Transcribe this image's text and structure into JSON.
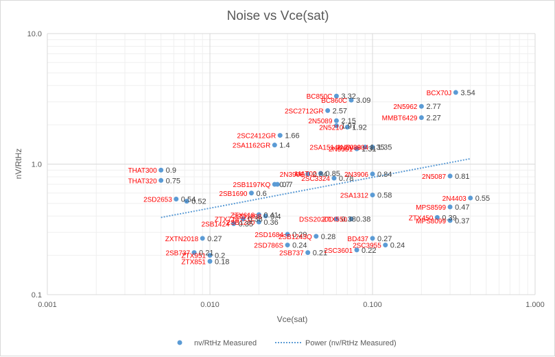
{
  "chart_data": {
    "type": "scatter",
    "title": "Noise vs Vce(sat)",
    "xlabel": "Vce(sat)",
    "ylabel": "nV/RtHz",
    "x_scale": "log",
    "y_scale": "log",
    "xlim": [
      0.001,
      1.0
    ],
    "ylim": [
      0.1,
      10.0
    ],
    "x_ticks": [
      "0.001",
      "0.010",
      "0.100",
      "1.000"
    ],
    "y_ticks": [
      "0.1",
      "1.0",
      "10.0"
    ],
    "grid": true,
    "legend_position": "bottom",
    "colors": {
      "points": "#5b9bd5",
      "trend": "#5b9bd5",
      "name_labels": "#ff0000",
      "value_labels": "#404040"
    },
    "series": [
      {
        "name": "nv/RtHz Measured",
        "marker": "circle",
        "points": [
          {
            "x": 0.325,
            "y": 3.54,
            "label": "3.54",
            "name": "BCX70J"
          },
          {
            "x": 0.06,
            "y": 3.32,
            "label": "3.32",
            "name": "BC850C"
          },
          {
            "x": 0.074,
            "y": 3.09,
            "label": "3.09",
            "name": "BC860C"
          },
          {
            "x": 0.053,
            "y": 2.57,
            "label": "2.57",
            "name": "2SC2712GR"
          },
          {
            "x": 0.2,
            "y": 2.77,
            "label": "2.77",
            "name": "2N5962"
          },
          {
            "x": 0.2,
            "y": 2.27,
            "label": "2.27",
            "name": "MMBT6429"
          },
          {
            "x": 0.06,
            "y": 2.15,
            "label": "2.15",
            "name": "2N5089"
          },
          {
            "x": 0.06,
            "y": 1.97,
            "label": "1.97",
            "name": ""
          },
          {
            "x": 0.07,
            "y": 1.92,
            "label": "1.92",
            "name": "2N5210"
          },
          {
            "x": 0.027,
            "y": 1.66,
            "label": "1.66",
            "name": "2SC2412GR"
          },
          {
            "x": 0.025,
            "y": 1.4,
            "label": "1.4",
            "name": "2SA1162GR"
          },
          {
            "x": 0.09,
            "y": 1.35,
            "label": "1.35",
            "name": "2N5088"
          },
          {
            "x": 0.08,
            "y": 1.31,
            "label": "1.31",
            "name": "2N5551"
          },
          {
            "x": 0.1,
            "y": 1.35,
            "label": "1.35",
            "name": "2SA1514K,2N3904"
          },
          {
            "x": 0.005,
            "y": 0.9,
            "label": "0.9",
            "name": "THAT300"
          },
          {
            "x": 0.005,
            "y": 0.75,
            "label": "0.75",
            "name": "THAT320"
          },
          {
            "x": 0.04,
            "y": 0.84,
            "label": "0.84",
            "name": "2N3906"
          },
          {
            "x": 0.048,
            "y": 0.85,
            "label": "0.85",
            "name": "MAT02"
          },
          {
            "x": 0.058,
            "y": 0.78,
            "label": "0.78",
            "name": "2SC3324"
          },
          {
            "x": 0.1,
            "y": 0.84,
            "label": "0.84",
            "name": "2N3906"
          },
          {
            "x": 0.3,
            "y": 0.81,
            "label": "0.81",
            "name": "2N5087"
          },
          {
            "x": 0.025,
            "y": 0.7,
            "label": "0.7",
            "name": "2SB1197KQ"
          },
          {
            "x": 0.026,
            "y": 0.7,
            "label": "0.7",
            "name": ""
          },
          {
            "x": 0.018,
            "y": 0.6,
            "label": "0.6",
            "name": "2SB1690"
          },
          {
            "x": 0.1,
            "y": 0.58,
            "label": "0.58",
            "name": "2SA1312"
          },
          {
            "x": 0.0062,
            "y": 0.54,
            "label": "0.54",
            "name": "2SD2653"
          },
          {
            "x": 0.0072,
            "y": 0.52,
            "label": "0.52",
            "name": ""
          },
          {
            "x": 0.4,
            "y": 0.55,
            "label": "0.55",
            "name": "2N4403"
          },
          {
            "x": 0.3,
            "y": 0.47,
            "label": "0.47",
            "name": "MPS8599"
          },
          {
            "x": 0.02,
            "y": 0.41,
            "label": "0.41",
            "name": "ZTX618"
          },
          {
            "x": 0.022,
            "y": 0.4,
            "label": "0.4",
            "name": "2SD1898"
          },
          {
            "x": 0.016,
            "y": 0.38,
            "label": "0.38",
            "name": "ZTX718"
          },
          {
            "x": 0.02,
            "y": 0.36,
            "label": "0.36",
            "name": "2SB1260"
          },
          {
            "x": 0.014,
            "y": 0.35,
            "label": "0.35",
            "name": "2SB1424"
          },
          {
            "x": 0.06,
            "y": 0.38,
            "label": "0.38",
            "name": "DSS20201"
          },
          {
            "x": 0.074,
            "y": 0.38,
            "label": "0.38",
            "name": "ZTX550"
          },
          {
            "x": 0.25,
            "y": 0.39,
            "label": "0.39",
            "name": "ZTX450"
          },
          {
            "x": 0.3,
            "y": 0.37,
            "label": "0.37",
            "name": "MPS8099"
          },
          {
            "x": 0.009,
            "y": 0.27,
            "label": "0.27",
            "name": "ZXTN2018"
          },
          {
            "x": 0.03,
            "y": 0.29,
            "label": "0.29",
            "name": "2SD1684"
          },
          {
            "x": 0.045,
            "y": 0.28,
            "label": "0.28",
            "name": "2SB1243Q"
          },
          {
            "x": 0.1,
            "y": 0.27,
            "label": "0.27",
            "name": "BD437"
          },
          {
            "x": 0.03,
            "y": 0.24,
            "label": "0.24",
            "name": "2SD786S"
          },
          {
            "x": 0.12,
            "y": 0.24,
            "label": "0.24",
            "name": "2SC3955"
          },
          {
            "x": 0.008,
            "y": 0.21,
            "label": "0.21",
            "name": "2SB737"
          },
          {
            "x": 0.01,
            "y": 0.2,
            "label": "0.2",
            "name": "ZTX951"
          },
          {
            "x": 0.01,
            "y": 0.18,
            "label": "0.18",
            "name": "ZTX851"
          },
          {
            "x": 0.04,
            "y": 0.21,
            "label": "0.21",
            "name": "2SB737"
          },
          {
            "x": 0.08,
            "y": 0.22,
            "label": "0.22",
            "name": "2SC3601"
          }
        ]
      },
      {
        "name": "Power (nv/RtHz Measured)",
        "line": "dotted",
        "from": {
          "x": 0.005,
          "y": 0.39
        },
        "to": {
          "x": 0.4,
          "y": 1.1
        }
      }
    ]
  }
}
